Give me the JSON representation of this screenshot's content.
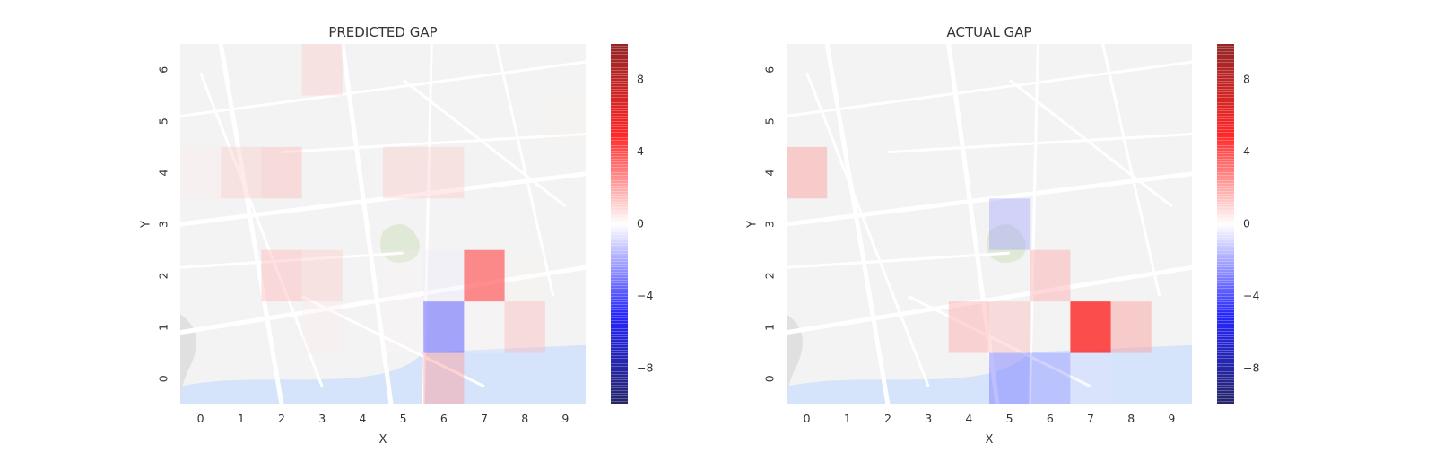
{
  "chart_data": [
    {
      "type": "heatmap",
      "title": "PREDICTED GAP",
      "xlabel": "X",
      "ylabel": "Y",
      "x": [
        0,
        1,
        2,
        3,
        4,
        5,
        6,
        7,
        8,
        9
      ],
      "y": [
        0,
        1,
        2,
        3,
        4,
        5,
        6
      ],
      "values": [
        [
          0,
          0,
          0,
          0,
          0,
          0,
          2,
          0,
          0,
          0
        ],
        [
          0,
          0,
          0,
          0.5,
          0,
          0.2,
          -3,
          0.2,
          1.5,
          0
        ],
        [
          0,
          0,
          1.6,
          1.2,
          0,
          0.2,
          -0.5,
          3.5,
          0.3,
          0
        ],
        [
          0,
          0,
          0,
          0,
          0,
          0,
          0,
          0,
          0,
          0
        ],
        [
          0.5,
          1.2,
          1.5,
          0,
          0,
          1.2,
          1.2,
          0,
          0,
          0
        ],
        [
          0,
          0,
          0,
          0,
          0,
          0,
          0,
          0,
          0,
          0.3
        ],
        [
          0,
          0,
          0,
          1.2,
          0,
          0,
          0,
          0,
          0,
          0
        ]
      ],
      "colorbar": {
        "range": [
          -10,
          10
        ],
        "ticks": [
          -8,
          -4,
          0,
          4,
          8
        ],
        "cmap": "seismic"
      },
      "background": "street map"
    },
    {
      "type": "heatmap",
      "title": "ACTUAL GAP",
      "xlabel": "X",
      "ylabel": "Y",
      "x": [
        0,
        1,
        2,
        3,
        4,
        5,
        6,
        7,
        8,
        9
      ],
      "y": [
        0,
        1,
        2,
        3,
        4,
        5,
        6
      ],
      "values": [
        [
          0,
          0,
          0,
          0,
          0,
          -2.5,
          -2,
          -0.5,
          0,
          0
        ],
        [
          0,
          0,
          0,
          0,
          1.8,
          1.5,
          0,
          4.5,
          2,
          0
        ],
        [
          0,
          0,
          0,
          0,
          0,
          0,
          1.8,
          0,
          0,
          0
        ],
        [
          0,
          0,
          0,
          0,
          0,
          -1.8,
          0,
          0,
          0,
          0
        ],
        [
          2,
          0,
          0,
          0,
          0,
          0,
          0,
          0,
          0,
          0
        ],
        [
          0,
          0,
          0,
          0,
          0,
          0,
          0,
          0,
          0,
          0
        ],
        [
          0,
          0,
          0,
          0,
          0,
          0,
          0,
          0,
          0,
          0
        ]
      ],
      "colorbar": {
        "range": [
          -10,
          10
        ],
        "ticks": [
          -8,
          -4,
          0,
          4,
          8
        ],
        "cmap": "seismic"
      },
      "background": "street map"
    }
  ]
}
